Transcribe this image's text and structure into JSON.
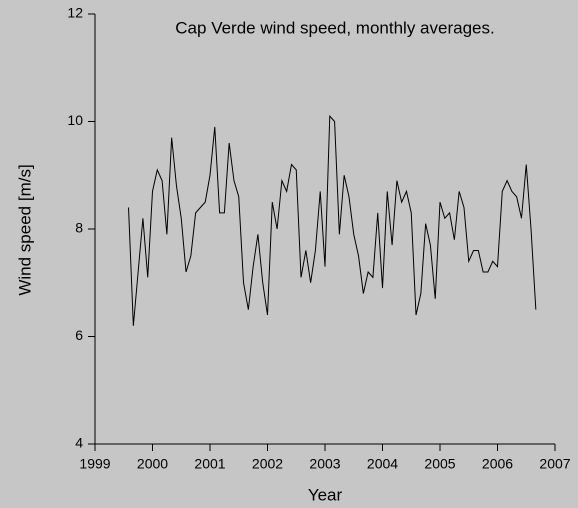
{
  "chart_data": {
    "type": "line",
    "title": "Cap Verde wind speed, monthly averages.",
    "x_label": "Year",
    "y_label": "Wind speed [m/s]",
    "x": [
      1999.583,
      1999.667,
      1999.75,
      1999.833,
      1999.917,
      2000,
      2000.083,
      2000.167,
      2000.25,
      2000.333,
      2000.417,
      2000.5,
      2000.583,
      2000.667,
      2000.75,
      2000.833,
      2000.917,
      2001,
      2001.083,
      2001.167,
      2001.25,
      2001.333,
      2001.417,
      2001.5,
      2001.583,
      2001.667,
      2001.75,
      2001.833,
      2001.917,
      2002,
      2002.083,
      2002.167,
      2002.25,
      2002.333,
      2002.417,
      2002.5,
      2002.583,
      2002.667,
      2002.75,
      2002.833,
      2002.917,
      2003,
      2003.083,
      2003.167,
      2003.25,
      2003.333,
      2003.417,
      2003.5,
      2003.583,
      2003.667,
      2003.75,
      2003.833,
      2003.917,
      2004,
      2004.083,
      2004.167,
      2004.25,
      2004.333,
      2004.417,
      2004.5,
      2004.583,
      2004.667,
      2004.75,
      2004.833,
      2004.917,
      2005,
      2005.083,
      2005.167,
      2005.25,
      2005.333,
      2005.417,
      2005.5,
      2005.583,
      2005.667,
      2005.75,
      2005.833,
      2005.917,
      2006,
      2006.083,
      2006.167,
      2006.25,
      2006.333,
      2006.417,
      2006.5,
      2006.583,
      2006.667
    ],
    "series": [
      {
        "color": "#000000",
        "values": [
          8.4,
          6.2,
          7.2,
          8.2,
          7.1,
          8.7,
          9.1,
          8.9,
          7.9,
          9.7,
          8.8,
          8.2,
          7.2,
          7.5,
          8.3,
          8.4,
          8.5,
          9.0,
          9.9,
          8.3,
          8.3,
          9.6,
          8.9,
          8.6,
          7.0,
          6.5,
          7.3,
          7.9,
          7.0,
          6.4,
          8.5,
          8.0,
          8.9,
          8.7,
          9.2,
          9.1,
          7.1,
          7.6,
          7.0,
          7.6,
          8.7,
          7.3,
          10.1,
          10.0,
          7.9,
          9.0,
          8.6,
          7.9,
          7.5,
          6.8,
          7.2,
          7.1,
          8.3,
          6.9,
          8.7,
          7.7,
          8.9,
          8.5,
          8.7,
          8.3,
          6.4,
          6.8,
          8.1,
          7.7,
          6.7,
          8.5,
          8.2,
          8.3,
          7.8,
          8.7,
          8.4,
          7.4,
          7.6,
          7.6,
          7.2,
          7.2,
          7.4,
          7.3,
          8.7,
          8.9,
          8.7,
          8.6,
          8.2,
          9.2,
          8.0,
          6.5
        ]
      }
    ],
    "xlim": [
      1999,
      2007
    ],
    "xticks": [
      1999,
      2000,
      2001,
      2002,
      2003,
      2004,
      2005,
      2006,
      2007
    ],
    "ylim": [
      4,
      12
    ],
    "yticks": [
      4,
      6,
      8,
      10,
      12
    ]
  }
}
